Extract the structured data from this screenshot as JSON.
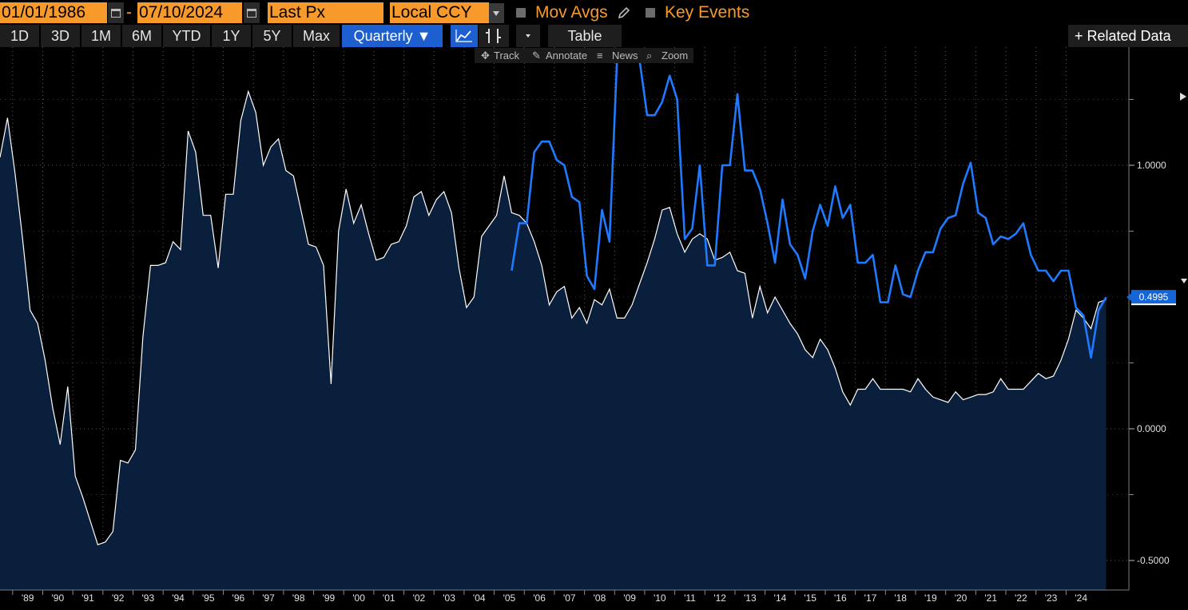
{
  "toolbar": {
    "start_date": "01/01/1986",
    "separator": "-",
    "end_date": "07/10/2024",
    "field": "Last Px",
    "currency": "Local CCY",
    "mov_avgs": "Mov Avgs",
    "key_events": "Key Events",
    "ranges": [
      "1D",
      "3D",
      "1M",
      "6M",
      "YTD",
      "1Y",
      "5Y",
      "Max"
    ],
    "frequency": "Quarterly ▼",
    "table": "Table",
    "related": "+ Related Data"
  },
  "chart_tools": {
    "track": "Track",
    "annotate": "Annotate",
    "news": "News",
    "zoom": "Zoom"
  },
  "colors": {
    "white_series": "#ffffff",
    "white_fill": "#0a1f3c",
    "blue_series": "#1f7aff",
    "toolbar_orange": "#f89a2b",
    "active_blue": "#1d5fd1"
  },
  "chart_data": {
    "type": "line",
    "y_ticks": [
      {
        "value": 1.0,
        "label": "1.0000"
      },
      {
        "value": 0.0,
        "label": "0.0000"
      },
      {
        "value": -0.5,
        "label": "-0.5000"
      }
    ],
    "y_minor_ticks": [
      1.25,
      0.75,
      0.5,
      0.25,
      -0.25
    ],
    "ylim": [
      -0.58,
      1.37
    ],
    "x_labels": [
      "'89",
      "'90",
      "'91",
      "'92",
      "'93",
      "'94",
      "'95",
      "'96",
      "'97",
      "'98",
      "'99",
      "'00",
      "'01",
      "'02",
      "'03",
      "'04",
      "'05",
      "'06",
      "'07",
      "'08",
      "'09",
      "'10",
      "'11",
      "'12",
      "'13",
      "'14",
      "'15",
      "'16",
      "'17",
      "'18",
      "'19",
      "'20",
      "'21",
      "'22",
      "'23",
      "'24"
    ],
    "x_label_years": [
      1989,
      1990,
      1991,
      1992,
      1993,
      1994,
      1995,
      1996,
      1997,
      1998,
      1999,
      2000,
      2001,
      2002,
      2003,
      2004,
      2005,
      2006,
      2007,
      2008,
      2009,
      2010,
      2011,
      2012,
      2013,
      2014,
      2015,
      2016,
      2017,
      2018,
      2019,
      2020,
      2021,
      2022,
      2023,
      2024
    ],
    "xlim": [
      1988.08,
      2024.95
    ],
    "last_value_label": "0.4995",
    "series": [
      {
        "area": true,
        "points": [
          [
            1988.08,
            1.03
          ],
          [
            1988.33,
            1.18
          ],
          [
            1988.58,
            0.97
          ],
          [
            1988.83,
            0.72
          ],
          [
            1989.08,
            0.45
          ],
          [
            1989.33,
            0.4
          ],
          [
            1989.58,
            0.26
          ],
          [
            1989.83,
            0.08
          ],
          [
            1990.08,
            -0.06
          ],
          [
            1990.33,
            0.16
          ],
          [
            1990.58,
            -0.18
          ],
          [
            1990.83,
            -0.26
          ],
          [
            1991.08,
            -0.35
          ],
          [
            1991.33,
            -0.44
          ],
          [
            1991.58,
            -0.43
          ],
          [
            1991.83,
            -0.39
          ],
          [
            1992.08,
            -0.12
          ],
          [
            1992.33,
            -0.13
          ],
          [
            1992.58,
            -0.08
          ],
          [
            1992.83,
            0.35
          ],
          [
            1993.08,
            0.62
          ],
          [
            1993.33,
            0.62
          ],
          [
            1993.58,
            0.63
          ],
          [
            1993.83,
            0.71
          ],
          [
            1994.08,
            0.68
          ],
          [
            1994.33,
            1.13
          ],
          [
            1994.58,
            1.05
          ],
          [
            1994.83,
            0.81
          ],
          [
            1995.08,
            0.81
          ],
          [
            1995.33,
            0.61
          ],
          [
            1995.58,
            0.89
          ],
          [
            1995.83,
            0.89
          ],
          [
            1996.08,
            1.17
          ],
          [
            1996.33,
            1.28
          ],
          [
            1996.58,
            1.2
          ],
          [
            1996.83,
            1.0
          ],
          [
            1997.08,
            1.07
          ],
          [
            1997.33,
            1.1
          ],
          [
            1997.58,
            0.98
          ],
          [
            1997.83,
            0.96
          ],
          [
            1998.08,
            0.83
          ],
          [
            1998.33,
            0.7
          ],
          [
            1998.58,
            0.69
          ],
          [
            1998.83,
            0.62
          ],
          [
            1999.08,
            0.17
          ],
          [
            1999.33,
            0.75
          ],
          [
            1999.58,
            0.91
          ],
          [
            1999.83,
            0.78
          ],
          [
            2000.08,
            0.85
          ],
          [
            2000.33,
            0.74
          ],
          [
            2000.58,
            0.64
          ],
          [
            2000.83,
            0.65
          ],
          [
            2001.08,
            0.7
          ],
          [
            2001.33,
            0.71
          ],
          [
            2001.58,
            0.77
          ],
          [
            2001.83,
            0.88
          ],
          [
            2002.08,
            0.9
          ],
          [
            2002.33,
            0.81
          ],
          [
            2002.58,
            0.87
          ],
          [
            2002.83,
            0.9
          ],
          [
            2003.08,
            0.82
          ],
          [
            2003.33,
            0.61
          ],
          [
            2003.58,
            0.46
          ],
          [
            2003.83,
            0.5
          ],
          [
            2004.08,
            0.73
          ],
          [
            2004.33,
            0.77
          ],
          [
            2004.58,
            0.81
          ],
          [
            2004.83,
            0.96
          ],
          [
            2005.08,
            0.82
          ],
          [
            2005.33,
            0.81
          ],
          [
            2005.58,
            0.78
          ],
          [
            2005.83,
            0.71
          ],
          [
            2006.08,
            0.62
          ],
          [
            2006.33,
            0.47
          ],
          [
            2006.58,
            0.52
          ],
          [
            2006.83,
            0.54
          ],
          [
            2007.08,
            0.42
          ],
          [
            2007.33,
            0.46
          ],
          [
            2007.58,
            0.4
          ],
          [
            2007.83,
            0.49
          ],
          [
            2008.08,
            0.47
          ],
          [
            2008.33,
            0.53
          ],
          [
            2008.58,
            0.42
          ],
          [
            2008.83,
            0.42
          ],
          [
            2009.08,
            0.47
          ],
          [
            2009.33,
            0.55
          ],
          [
            2009.58,
            0.63
          ],
          [
            2009.83,
            0.72
          ],
          [
            2010.08,
            0.83
          ],
          [
            2010.33,
            0.84
          ],
          [
            2010.58,
            0.74
          ],
          [
            2010.83,
            0.67
          ],
          [
            2011.08,
            0.72
          ],
          [
            2011.33,
            0.74
          ],
          [
            2011.58,
            0.72
          ],
          [
            2011.83,
            0.64
          ],
          [
            2012.08,
            0.65
          ],
          [
            2012.33,
            0.67
          ],
          [
            2012.58,
            0.6
          ],
          [
            2012.83,
            0.59
          ],
          [
            2013.08,
            0.42
          ],
          [
            2013.33,
            0.54
          ],
          [
            2013.58,
            0.44
          ],
          [
            2013.83,
            0.5
          ],
          [
            2014.08,
            0.45
          ],
          [
            2014.33,
            0.4
          ],
          [
            2014.58,
            0.36
          ],
          [
            2014.83,
            0.3
          ],
          [
            2015.08,
            0.27
          ],
          [
            2015.33,
            0.34
          ],
          [
            2015.58,
            0.3
          ],
          [
            2015.83,
            0.23
          ],
          [
            2016.08,
            0.14
          ],
          [
            2016.33,
            0.09
          ],
          [
            2016.58,
            0.15
          ],
          [
            2016.83,
            0.15
          ],
          [
            2017.08,
            0.19
          ],
          [
            2017.33,
            0.15
          ],
          [
            2017.58,
            0.15
          ],
          [
            2017.83,
            0.15
          ],
          [
            2018.08,
            0.15
          ],
          [
            2018.33,
            0.14
          ],
          [
            2018.58,
            0.19
          ],
          [
            2018.83,
            0.15
          ],
          [
            2019.08,
            0.12
          ],
          [
            2019.33,
            0.11
          ],
          [
            2019.58,
            0.1
          ],
          [
            2019.83,
            0.14
          ],
          [
            2020.08,
            0.11
          ],
          [
            2020.33,
            0.12
          ],
          [
            2020.58,
            0.13
          ],
          [
            2020.83,
            0.13
          ],
          [
            2021.08,
            0.14
          ],
          [
            2021.33,
            0.19
          ],
          [
            2021.58,
            0.15
          ],
          [
            2021.83,
            0.15
          ],
          [
            2022.08,
            0.15
          ],
          [
            2022.33,
            0.18
          ],
          [
            2022.58,
            0.21
          ],
          [
            2022.83,
            0.19
          ],
          [
            2023.08,
            0.2
          ],
          [
            2023.33,
            0.26
          ],
          [
            2023.58,
            0.34
          ],
          [
            2023.83,
            0.45
          ],
          [
            2024.08,
            0.42
          ],
          [
            2024.33,
            0.38
          ],
          [
            2024.58,
            0.48
          ],
          [
            2024.83,
            0.49
          ]
        ]
      },
      {
        "area": false,
        "points": [
          [
            2005.08,
            0.6
          ],
          [
            2005.33,
            0.78
          ],
          [
            2005.58,
            0.78
          ],
          [
            2005.83,
            1.05
          ],
          [
            2006.08,
            1.09
          ],
          [
            2006.33,
            1.09
          ],
          [
            2006.58,
            1.02
          ],
          [
            2006.83,
            1.0
          ],
          [
            2007.08,
            0.88
          ],
          [
            2007.33,
            0.86
          ],
          [
            2007.58,
            0.58
          ],
          [
            2007.83,
            0.53
          ],
          [
            2008.08,
            0.83
          ],
          [
            2008.33,
            0.71
          ],
          [
            2008.58,
            1.4
          ],
          [
            2008.83,
            1.4
          ],
          [
            2009.08,
            1.4
          ],
          [
            2009.33,
            1.4
          ],
          [
            2009.58,
            1.19
          ],
          [
            2009.83,
            1.19
          ],
          [
            2010.08,
            1.24
          ],
          [
            2010.33,
            1.34
          ],
          [
            2010.58,
            1.25
          ],
          [
            2010.83,
            0.72
          ],
          [
            2011.08,
            0.76
          ],
          [
            2011.33,
            1.0
          ],
          [
            2011.58,
            0.62
          ],
          [
            2011.83,
            0.62
          ],
          [
            2012.08,
            1.0
          ],
          [
            2012.33,
            1.0
          ],
          [
            2012.58,
            1.27
          ],
          [
            2012.83,
            0.98
          ],
          [
            2013.08,
            0.98
          ],
          [
            2013.33,
            0.91
          ],
          [
            2013.58,
            0.78
          ],
          [
            2013.83,
            0.63
          ],
          [
            2014.08,
            0.87
          ],
          [
            2014.33,
            0.7
          ],
          [
            2014.58,
            0.66
          ],
          [
            2014.83,
            0.57
          ],
          [
            2015.08,
            0.75
          ],
          [
            2015.33,
            0.85
          ],
          [
            2015.58,
            0.77
          ],
          [
            2015.83,
            0.92
          ],
          [
            2016.08,
            0.8
          ],
          [
            2016.33,
            0.85
          ],
          [
            2016.58,
            0.63
          ],
          [
            2016.83,
            0.63
          ],
          [
            2017.08,
            0.66
          ],
          [
            2017.33,
            0.48
          ],
          [
            2017.58,
            0.48
          ],
          [
            2017.83,
            0.62
          ],
          [
            2018.08,
            0.51
          ],
          [
            2018.33,
            0.5
          ],
          [
            2018.58,
            0.6
          ],
          [
            2018.83,
            0.67
          ],
          [
            2019.08,
            0.67
          ],
          [
            2019.33,
            0.76
          ],
          [
            2019.58,
            0.8
          ],
          [
            2019.83,
            0.81
          ],
          [
            2020.08,
            0.93
          ],
          [
            2020.33,
            1.01
          ],
          [
            2020.58,
            0.82
          ],
          [
            2020.83,
            0.8
          ],
          [
            2021.08,
            0.7
          ],
          [
            2021.33,
            0.73
          ],
          [
            2021.58,
            0.72
          ],
          [
            2021.83,
            0.74
          ],
          [
            2022.08,
            0.78
          ],
          [
            2022.33,
            0.66
          ],
          [
            2022.58,
            0.6
          ],
          [
            2022.83,
            0.6
          ],
          [
            2023.08,
            0.56
          ],
          [
            2023.33,
            0.6
          ],
          [
            2023.58,
            0.6
          ],
          [
            2023.83,
            0.46
          ],
          [
            2024.08,
            0.43
          ],
          [
            2024.33,
            0.27
          ],
          [
            2024.58,
            0.45
          ],
          [
            2024.83,
            0.4995
          ]
        ]
      }
    ]
  }
}
